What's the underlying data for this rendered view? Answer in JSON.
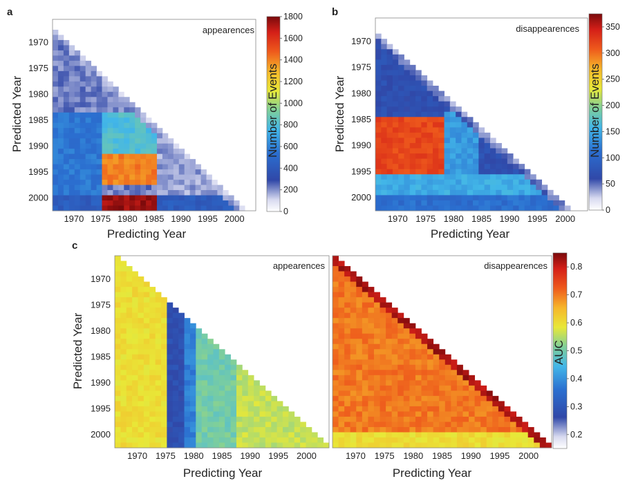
{
  "chart_data": [
    {
      "panel": "a",
      "type": "heatmap",
      "annotation": "appearences",
      "xlabel": "Predicting Year",
      "ylabel": "Predicted Year",
      "x_ticks": [
        "1970",
        "1975",
        "1980",
        "1985",
        "1990",
        "1995",
        "2000"
      ],
      "y_ticks": [
        "1970",
        "1975",
        "1980",
        "1985",
        "1990",
        "1995",
        "2000"
      ],
      "xlim": [
        1966,
        2004
      ],
      "ylim": [
        1966,
        2003
      ],
      "colorbar": {
        "label": "Number of Events",
        "range": [
          0,
          1800
        ],
        "ticks": [
          "0",
          "200",
          "400",
          "600",
          "800",
          "1000",
          "1200",
          "1400",
          "1600",
          "1800"
        ]
      },
      "mask": "Cells shown where predicted year >= predicting year + 2 (lower-left triangle of the grid)",
      "approx_values": {
        "background_diagonal_band": 220,
        "lower_left_region_1966_1974": 560,
        "block_predicting_1975_1984_predicted_1984_1991": 800,
        "block_predicting_1975_1984_predicted_1992_1997": 1400,
        "block_predicting_1975_1984_predicted_2000_2002": 1750,
        "region_predicting_1985_2001": 180,
        "row_predicted_2000_2002": 420
      }
    },
    {
      "panel": "b",
      "type": "heatmap",
      "annotation": "disappearences",
      "xlabel": "Predicting Year",
      "ylabel": "Predicted Year",
      "x_ticks": [
        "1970",
        "1975",
        "1980",
        "1985",
        "1990",
        "1995",
        "2000"
      ],
      "y_ticks": [
        "1970",
        "1975",
        "1980",
        "1985",
        "1990",
        "1995",
        "2000"
      ],
      "xlim": [
        1966,
        2004
      ],
      "ylim": [
        1966,
        2003
      ],
      "colorbar": {
        "label": "Number of Events",
        "range": [
          0,
          375
        ],
        "ticks": [
          "0",
          "50",
          "100",
          "150",
          "200",
          "250",
          "300",
          "350"
        ]
      },
      "mask": "Cells shown where predicted year >= predicting year + 3 (lower-left triangle of the grid)",
      "approx_values": {
        "background_diagonal_band": 70,
        "block_predicting_1967_1977_predicted_1985_1995": 320,
        "band_predicting_1978_1983_predicted_1984_1995": 140,
        "row_predicted_1996_1999": 150,
        "row_predicted_2000_2002": 110
      }
    },
    {
      "panel": "c",
      "type": "heatmap",
      "annotation": "appearences",
      "xlabel": "Predicting Year",
      "ylabel": "Predicted Year",
      "x_ticks": [
        "1970",
        "1975",
        "1980",
        "1985",
        "1990",
        "1995",
        "2000"
      ],
      "y_ticks": [
        "1970",
        "1975",
        "1980",
        "1985",
        "1990",
        "1995",
        "2000"
      ],
      "xlim": [
        1966,
        2004
      ],
      "ylim": [
        1966,
        2003
      ],
      "colorbar": {
        "label": "AUC",
        "range": [
          0.15,
          0.85
        ]
      },
      "mask": "Cells shown where predicted year >= predicting year (lower-left triangle)",
      "approx_values": {
        "predicting_1966_1974": 0.6,
        "predicting_1975_1977": 0.28,
        "predicting_1978_1979": 0.38,
        "predicting_1980_1986": 0.5,
        "predicting_1987_2002": 0.56
      }
    },
    {
      "panel": "c",
      "type": "heatmap",
      "annotation": "disappearences",
      "xlabel": "Predicting Year",
      "ylabel": "",
      "x_ticks": [
        "1970",
        "1975",
        "1980",
        "1985",
        "1990",
        "1995",
        "2000"
      ],
      "xlim": [
        1966,
        2004
      ],
      "ylim": [
        1966,
        2003
      ],
      "colorbar": {
        "label": "AUC",
        "range": [
          0.15,
          0.85
        ],
        "ticks": [
          "0.2",
          "0.3",
          "0.4",
          "0.5",
          "0.6",
          "0.7",
          "0.8"
        ]
      },
      "mask": "Cells shown where predicted year >= predicting year (lower-left triangle)",
      "approx_values": {
        "diagonal": 0.82,
        "interior": 0.7,
        "bottom_rows": 0.6
      }
    }
  ],
  "panel_letters": [
    "a",
    "b",
    "c"
  ]
}
